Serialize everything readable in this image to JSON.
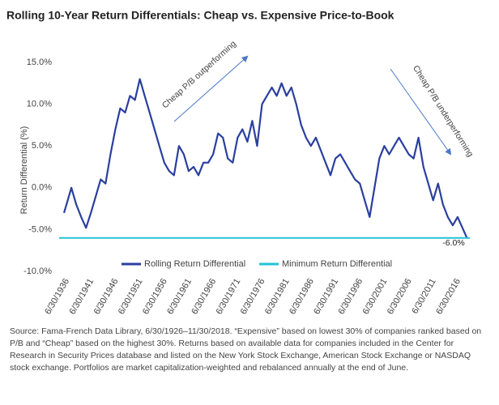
{
  "chart_data": {
    "type": "line",
    "title": "Rolling 10-Year Return Differentials: Cheap vs. Expensive Price-to-Book",
    "ylabel": "Return Differential (%)",
    "xlim": [
      1935.5,
      2019.5
    ],
    "ylim": [
      -10,
      15
    ],
    "yticks": [
      {
        "value": 15,
        "label": "15.0%"
      },
      {
        "value": 10,
        "label": "10.0%"
      },
      {
        "value": 5,
        "label": "5.0%"
      },
      {
        "value": 0,
        "label": "0.0%"
      },
      {
        "value": -5,
        "label": "-5.0%"
      },
      {
        "value": -10,
        "label": "-10.0%"
      }
    ],
    "xticks": [
      {
        "value": 1936.5,
        "label": "6/30/1936"
      },
      {
        "value": 1941.5,
        "label": "6/30/1941"
      },
      {
        "value": 1946.5,
        "label": "6/30/1946"
      },
      {
        "value": 1951.5,
        "label": "6/30/1951"
      },
      {
        "value": 1956.5,
        "label": "6/30/1956"
      },
      {
        "value": 1961.5,
        "label": "6/30/1961"
      },
      {
        "value": 1966.5,
        "label": "6/30/1966"
      },
      {
        "value": 1971.5,
        "label": "6/30/1971"
      },
      {
        "value": 1976.5,
        "label": "6/30/1976"
      },
      {
        "value": 1981.5,
        "label": "6/30/1981"
      },
      {
        "value": 1986.5,
        "label": "6/30/1986"
      },
      {
        "value": 1991.5,
        "label": "6/30/1991"
      },
      {
        "value": 1996.5,
        "label": "6/30/1996"
      },
      {
        "value": 2001.5,
        "label": "6/30/2001"
      },
      {
        "value": 2006.5,
        "label": "6/30/2006"
      },
      {
        "value": 2011.5,
        "label": "6/30/2011"
      },
      {
        "value": 2016.5,
        "label": "6/30/2016"
      }
    ],
    "series": [
      {
        "name": "Rolling Return Differential",
        "color": "#2a3f9e",
        "x": [
          1936.5,
          1937,
          1938,
          1939,
          1940,
          1941,
          1942,
          1943,
          1944,
          1945,
          1946,
          1947,
          1948,
          1949,
          1950,
          1951,
          1952,
          1953,
          1954,
          1955,
          1956,
          1957,
          1958,
          1959,
          1960,
          1961,
          1962,
          1963,
          1964,
          1965,
          1966,
          1967,
          1968,
          1969,
          1970,
          1971,
          1972,
          1973,
          1974,
          1975,
          1976,
          1977,
          1978,
          1979,
          1980,
          1981,
          1982,
          1983,
          1984,
          1985,
          1986,
          1987,
          1988,
          1989,
          1990,
          1991,
          1992,
          1993,
          1994,
          1995,
          1996,
          1997,
          1998,
          1999,
          2000,
          2001,
          2002,
          2003,
          2004,
          2005,
          2006,
          2007,
          2008,
          2009,
          2010,
          2011,
          2012,
          2013,
          2014,
          2015,
          2016,
          2017,
          2018.9
        ],
        "values": [
          -3,
          -2,
          0,
          -2,
          -3.5,
          -4.8,
          -3,
          -1,
          1,
          0.5,
          4,
          7,
          9.5,
          9,
          11,
          10.5,
          13,
          11,
          9,
          7,
          5,
          3,
          2,
          1.5,
          5,
          4,
          2,
          2.5,
          1.5,
          3,
          3,
          4,
          6.5,
          6,
          3.5,
          3,
          6,
          7,
          5.5,
          8,
          5,
          10,
          11,
          12,
          11,
          12.5,
          11,
          12,
          10,
          7.5,
          6,
          5,
          6,
          4.5,
          3,
          1.5,
          3.5,
          4,
          3,
          2,
          1,
          0.5,
          -1.5,
          -3.5,
          0,
          3.5,
          5,
          4,
          5,
          6,
          5,
          4,
          3.5,
          6,
          2.5,
          0.5,
          -1.5,
          0.5,
          -2,
          -3.5,
          -4.5,
          -3.5,
          -6
        ]
      },
      {
        "name": "Minimum Return Differential",
        "color": "#22c4d6",
        "x": [
          1935.5,
          2019.5
        ],
        "values": [
          -6,
          -6
        ]
      }
    ],
    "annotations": [
      "Cheap P/B outperforming",
      "Cheap P/B underperforming",
      "-6.0%"
    ],
    "note": "Source: Fama-French Data Library, 6/30/1926–11/30/2018. “Expensive” based on lowest 30% of companies ranked based on P/B and “Cheap” based on the highest 30%. Returns based on available data for companies included in the Center for Research in Security Prices database and listed on the New York Stock Exchange, American Stock Exchange or NASDAQ stock exchange. Portfolios are market capitalization-weighted and rebalanced annually at the end of June."
  }
}
